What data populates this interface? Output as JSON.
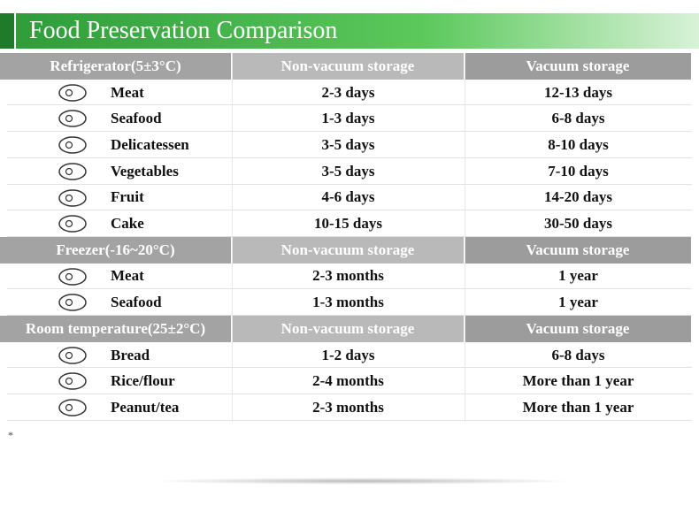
{
  "title": "Food Preservation Comparison",
  "sections": [
    {
      "header": [
        "Refrigerator(5±3°C)",
        "Non-vacuum storage",
        "Vacuum storage"
      ],
      "rows": [
        [
          "Meat",
          "2-3 days",
          "12-13 days"
        ],
        [
          "Seafood",
          "1-3 days",
          "6-8 days"
        ],
        [
          "Delicatessen",
          "3-5 days",
          "8-10 days"
        ],
        [
          "Vegetables",
          "3-5 days",
          "7-10 days"
        ],
        [
          "Fruit",
          "4-6 days",
          "14-20 days"
        ],
        [
          "Cake",
          "10-15 days",
          "30-50 days"
        ]
      ]
    },
    {
      "header": [
        "Freezer(-16~20°C)",
        "Non-vacuum storage",
        "Vacuum storage"
      ],
      "rows": [
        [
          "Meat",
          "2-3 months",
          "1 year"
        ],
        [
          "Seafood",
          "1-3 months",
          "1 year"
        ]
      ]
    },
    {
      "header": [
        "Room temperature(25±2°C)",
        "Non-vacuum storage",
        "Vacuum storage"
      ],
      "rows": [
        [
          "Bread",
          "1-2 days",
          "6-8 days"
        ],
        [
          "Rice/flour",
          "2-4 months",
          "More than 1 year"
        ],
        [
          "Peanut/tea",
          "2-3 months",
          "More than 1 year"
        ]
      ]
    }
  ],
  "footnote": "*"
}
